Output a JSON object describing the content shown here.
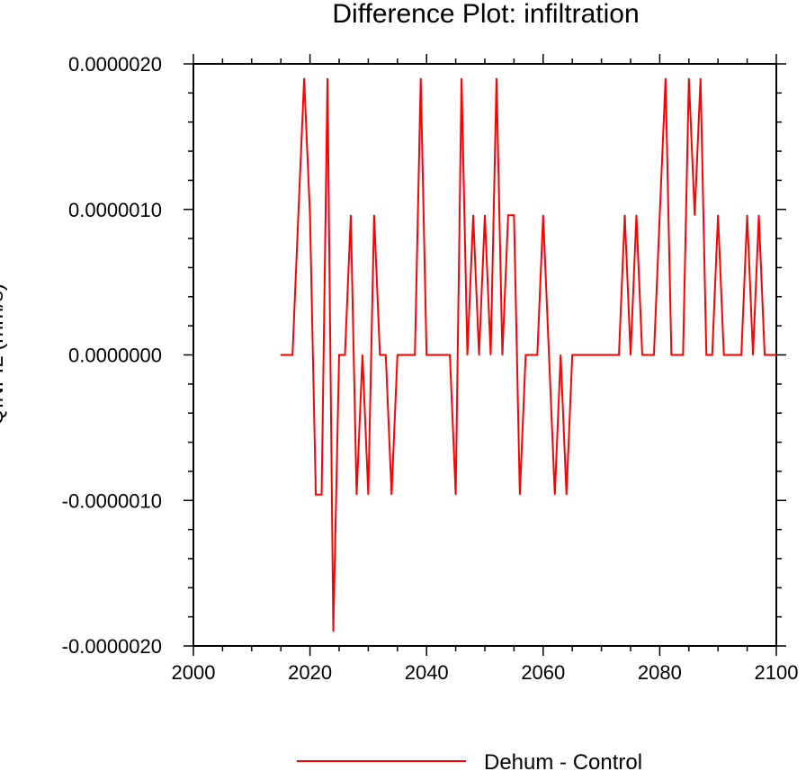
{
  "chart_data": {
    "type": "line",
    "title": "Difference Plot: infiltration",
    "xlabel": "",
    "ylabel": "QINFIL (mm/s)",
    "xlim": [
      2000,
      2100
    ],
    "ylim": [
      -2e-06,
      2e-06
    ],
    "x_ticks": [
      2000,
      2020,
      2040,
      2060,
      2080,
      2100
    ],
    "x_tick_labels": [
      "2000",
      "2020",
      "2040",
      "2060",
      "2080",
      "2100"
    ],
    "y_ticks": [
      -2e-06,
      -1e-06,
      0,
      1e-06,
      2e-06
    ],
    "y_tick_labels": [
      "-0.0000020",
      "-0.0000010",
      "0.0000000",
      "0.0000010",
      "0.0000020"
    ],
    "series": [
      {
        "name": "Dehum - Control",
        "color": "#ff0000",
        "x": [
          2015,
          2016,
          2017,
          2018,
          2019,
          2020,
          2021,
          2022,
          2023,
          2024,
          2025,
          2026,
          2027,
          2028,
          2029,
          2030,
          2031,
          2032,
          2033,
          2034,
          2035,
          2036,
          2037,
          2038,
          2039,
          2040,
          2041,
          2042,
          2043,
          2044,
          2045,
          2046,
          2047,
          2048,
          2049,
          2050,
          2051,
          2052,
          2053,
          2054,
          2055,
          2056,
          2057,
          2058,
          2059,
          2060,
          2061,
          2062,
          2063,
          2064,
          2065,
          2066,
          2067,
          2068,
          2069,
          2070,
          2071,
          2072,
          2073,
          2074,
          2075,
          2076,
          2077,
          2078,
          2079,
          2080,
          2081,
          2082,
          2083,
          2084,
          2085,
          2086,
          2087,
          2088,
          2089,
          2090,
          2091,
          2092,
          2093,
          2094,
          2095,
          2096,
          2097,
          2098,
          2099,
          2100
        ],
        "y": [
          0,
          0,
          0,
          9.6e-07,
          1.9e-06,
          9.6e-07,
          -9.6e-07,
          -9.6e-07,
          1.9e-06,
          -1.9e-06,
          0,
          0,
          9.6e-07,
          -9.6e-07,
          0,
          -9.6e-07,
          9.6e-07,
          0,
          0,
          -9.6e-07,
          0,
          0,
          0,
          0,
          1.9e-06,
          0,
          0,
          0,
          0,
          0,
          -9.6e-07,
          1.9e-06,
          0,
          9.6e-07,
          0,
          9.6e-07,
          0,
          1.9e-06,
          0,
          9.6e-07,
          9.6e-07,
          -9.6e-07,
          0,
          0,
          0,
          9.6e-07,
          0,
          -9.6e-07,
          0,
          -9.6e-07,
          0,
          0,
          0,
          0,
          0,
          0,
          0,
          0,
          0,
          9.6e-07,
          0,
          9.6e-07,
          0,
          0,
          0,
          9.6e-07,
          1.9e-06,
          0,
          0,
          0,
          1.9e-06,
          9.6e-07,
          1.9e-06,
          0,
          0,
          9.6e-07,
          0,
          0,
          0,
          0,
          9.6e-07,
          0,
          9.6e-07,
          0,
          0,
          0
        ]
      }
    ],
    "legend": {
      "position": "bottom-center",
      "entries": [
        "Dehum - Control"
      ]
    }
  }
}
